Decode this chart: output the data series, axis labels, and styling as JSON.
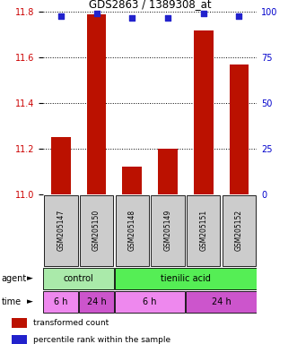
{
  "title": "GDS2863 / 1389308_at",
  "samples": [
    "GSM205147",
    "GSM205150",
    "GSM205148",
    "GSM205149",
    "GSM205151",
    "GSM205152"
  ],
  "bar_values": [
    11.25,
    11.79,
    11.12,
    11.2,
    11.72,
    11.57
  ],
  "percentile_values": [
    98,
    99,
    97,
    97,
    99,
    98
  ],
  "ylim_left": [
    11.0,
    11.8
  ],
  "ylim_right": [
    0,
    100
  ],
  "yticks_left": [
    11.0,
    11.2,
    11.4,
    11.6,
    11.8
  ],
  "yticks_right": [
    0,
    25,
    50,
    75,
    100
  ],
  "bar_color": "#bb1100",
  "dot_color": "#2222cc",
  "agent_row": [
    {
      "label": "control",
      "start": 0,
      "end": 2,
      "color": "#aaeaaa"
    },
    {
      "label": "tienilic acid",
      "start": 2,
      "end": 6,
      "color": "#55ee55"
    }
  ],
  "time_row": [
    {
      "label": "6 h",
      "start": 0,
      "end": 1,
      "color": "#ee88ee"
    },
    {
      "label": "24 h",
      "start": 1,
      "end": 2,
      "color": "#cc55cc"
    },
    {
      "label": "6 h",
      "start": 2,
      "end": 4,
      "color": "#ee88ee"
    },
    {
      "label": "24 h",
      "start": 4,
      "end": 6,
      "color": "#cc55cc"
    }
  ],
  "legend_items": [
    {
      "label": "transformed count",
      "color": "#bb1100"
    },
    {
      "label": "percentile rank within the sample",
      "color": "#2222cc"
    }
  ],
  "label_color_left": "#cc0000",
  "label_color_right": "#0000cc",
  "bg_color": "#ffffff",
  "sample_box_color": "#cccccc"
}
